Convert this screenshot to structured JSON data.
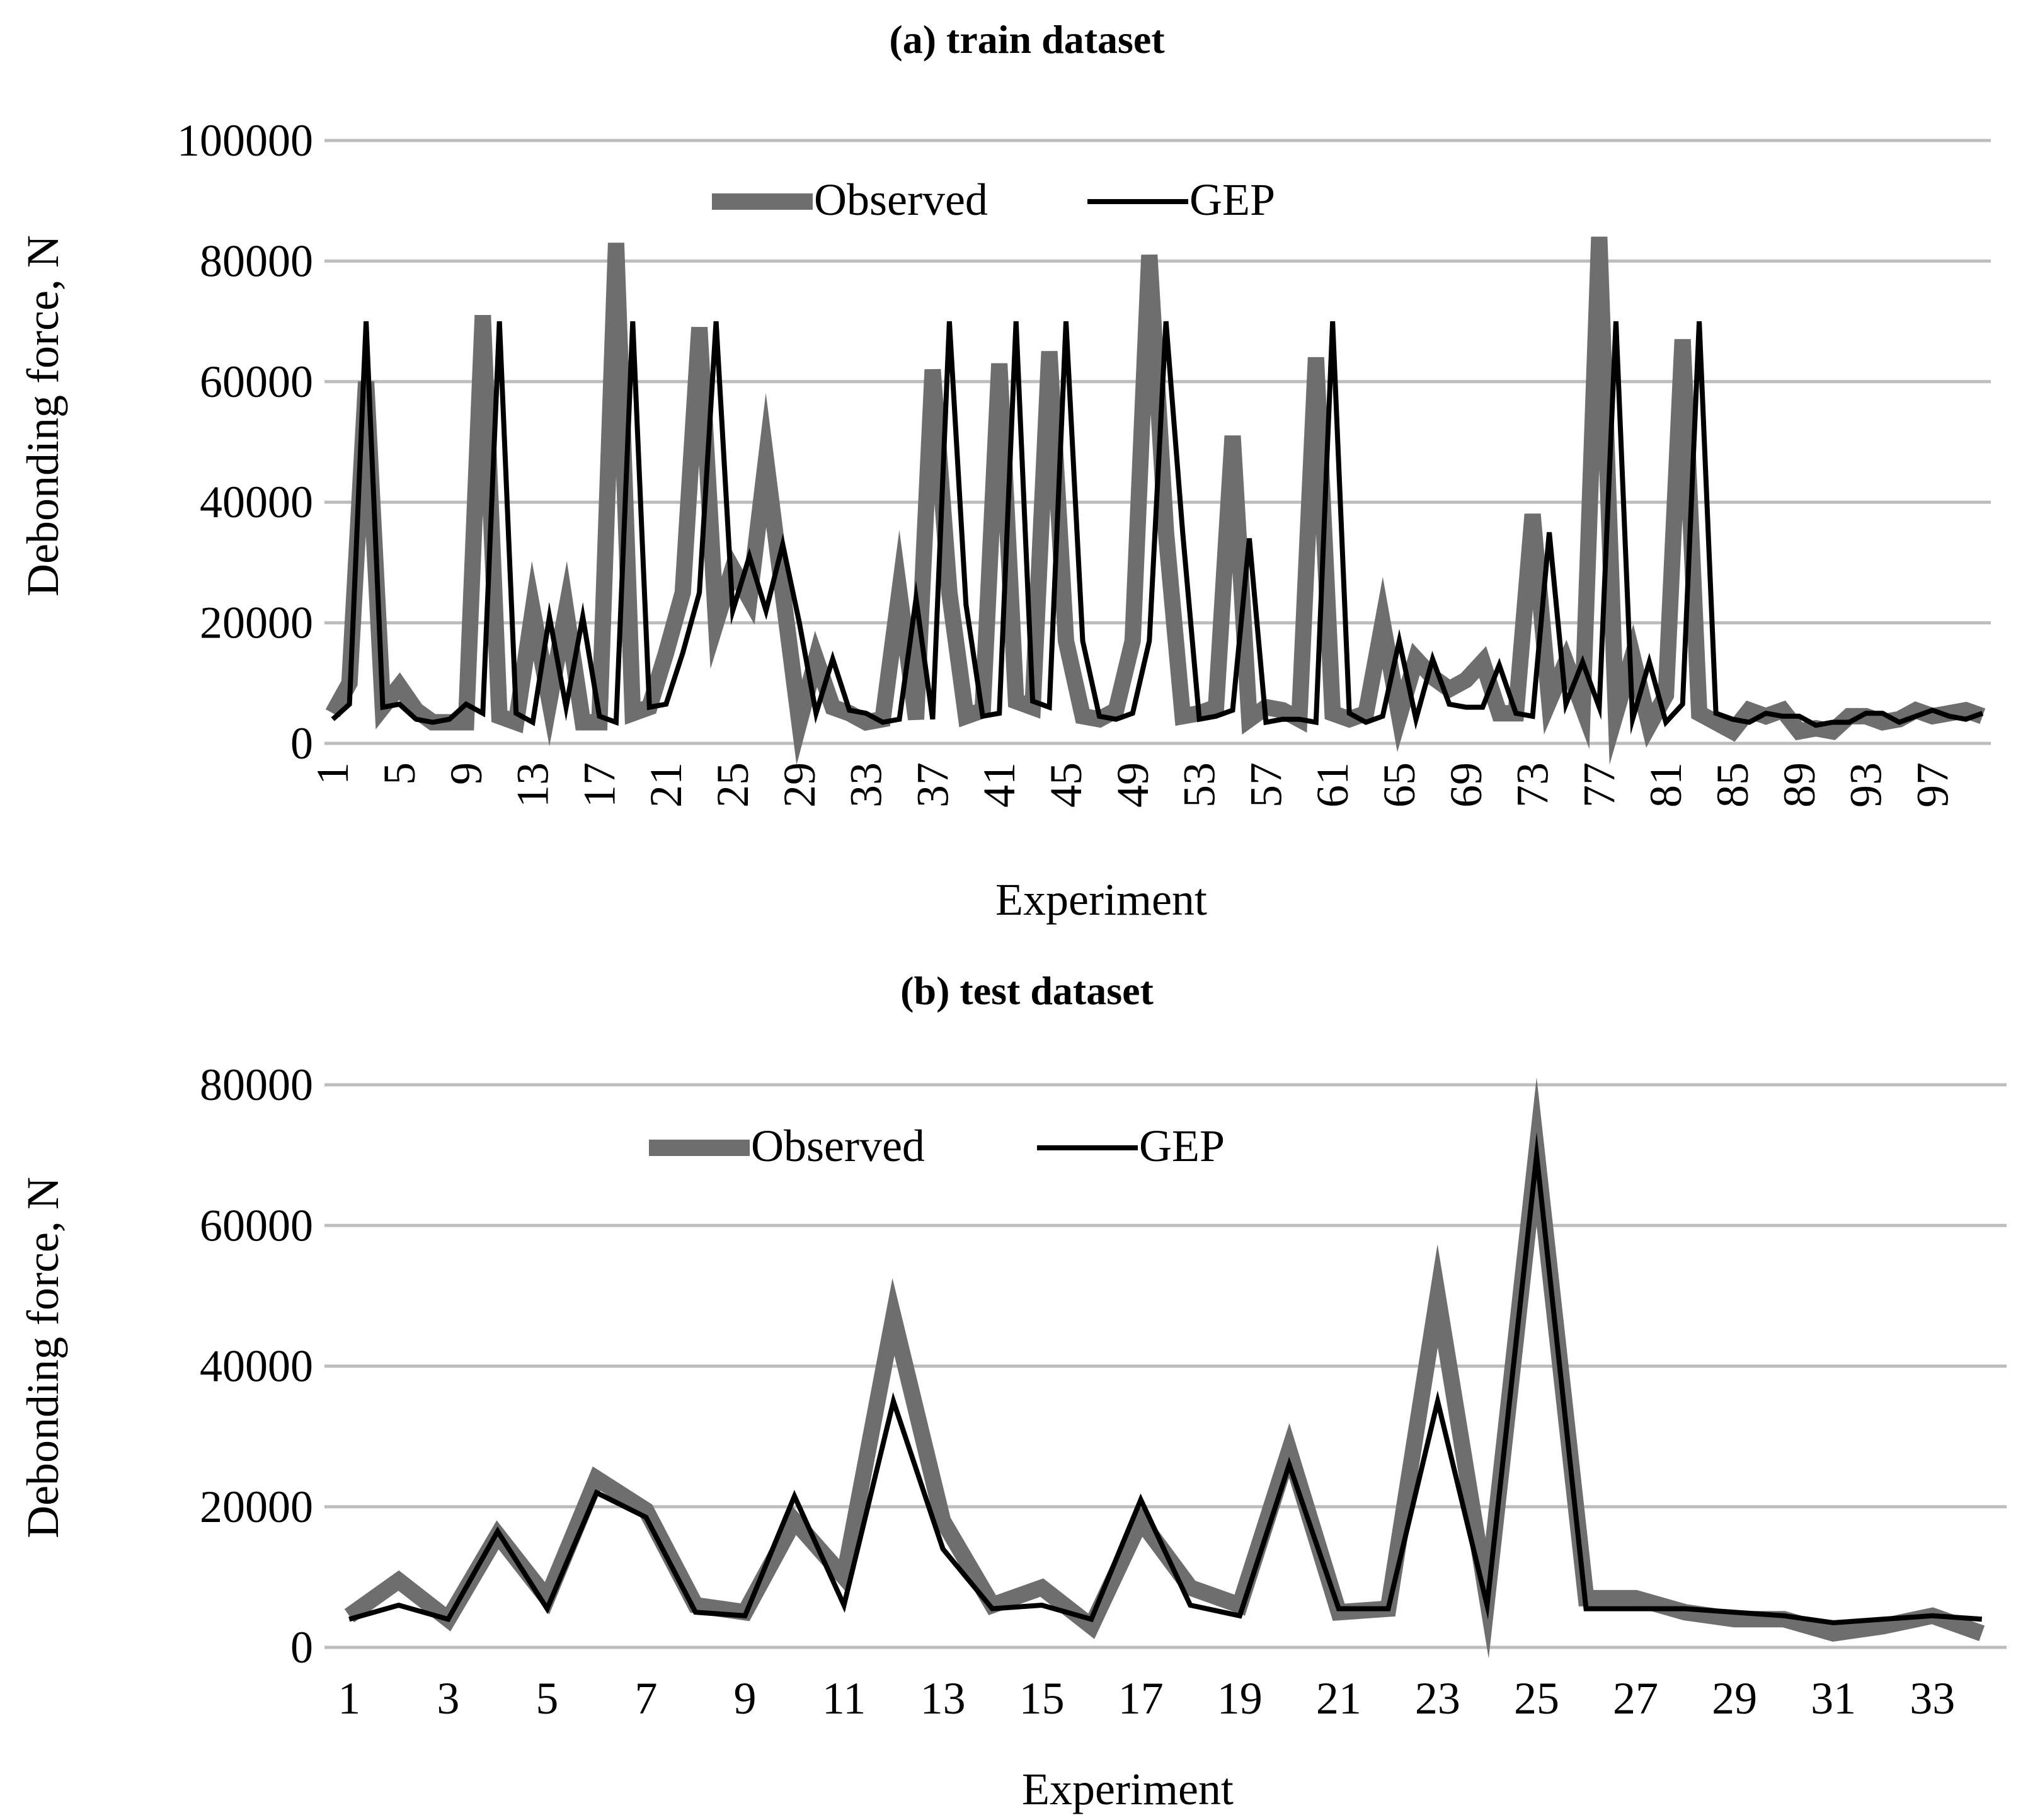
{
  "chart_data": [
    {
      "type": "line",
      "title": "(a) train dataset",
      "xlabel": "Experiment",
      "ylabel": "Debonding force, N",
      "ylim": [
        0,
        100000
      ],
      "yticks": [
        0,
        20000,
        40000,
        60000,
        80000,
        100000
      ],
      "x": [
        1,
        2,
        3,
        4,
        5,
        6,
        7,
        8,
        9,
        10,
        11,
        12,
        13,
        14,
        15,
        16,
        17,
        18,
        19,
        20,
        21,
        22,
        23,
        24,
        25,
        26,
        27,
        28,
        29,
        30,
        31,
        32,
        33,
        34,
        35,
        36,
        37,
        38,
        39,
        40,
        41,
        42,
        43,
        44,
        45,
        46,
        47,
        48,
        49,
        50,
        51,
        52,
        53,
        54,
        55,
        56,
        57,
        58,
        59,
        60,
        61,
        62,
        63,
        64,
        65,
        66,
        67,
        68,
        69,
        70,
        71,
        72,
        73,
        74,
        75,
        76,
        77,
        78,
        79,
        80,
        81,
        82,
        83,
        84,
        85,
        86,
        87,
        88,
        89,
        90,
        91,
        92,
        93,
        94,
        95,
        96,
        97,
        98,
        99,
        100
      ],
      "xtick_labels": [
        "1",
        "5",
        "9",
        "13",
        "17",
        "21",
        "25",
        "29",
        "33",
        "37",
        "41",
        "45",
        "49",
        "53",
        "57",
        "61",
        "65",
        "69",
        "73",
        "77",
        "81",
        "85",
        "89",
        "93",
        "97"
      ],
      "legend": [
        "Observed",
        "GEP"
      ],
      "legend_position": "top-center",
      "series": [
        {
          "name": "Observed",
          "color": "#6e6e6e",
          "values": [
            5000,
            10000,
            60000,
            6000,
            9500,
            5500,
            3500,
            3500,
            3500,
            71000,
            4500,
            3500,
            22000,
            7000,
            22000,
            3500,
            3500,
            83000,
            5000,
            6000,
            15000,
            25000,
            69000,
            20000,
            29000,
            24000,
            47000,
            25000,
            3500,
            14000,
            6000,
            5000,
            3500,
            4000,
            25000,
            4000,
            62000,
            25000,
            4500,
            5500,
            63000,
            7000,
            6000,
            65000,
            17000,
            4500,
            4000,
            5500,
            17000,
            81000,
            35000,
            4500,
            5000,
            6000,
            51000,
            4000,
            6000,
            5500,
            4000,
            64000,
            5000,
            4000,
            5000,
            20000,
            4500,
            14000,
            11000,
            9000,
            10500,
            13500,
            5000,
            5000,
            38000,
            7000,
            13500,
            6000,
            84000,
            5000,
            14500,
            3000,
            8000,
            67000,
            5000,
            3500,
            2000,
            5500,
            4500,
            5500,
            2000,
            2500,
            2000,
            4500,
            4500,
            3500,
            4000,
            5500,
            4500,
            5000,
            5500,
            4500
          ]
        },
        {
          "name": "GEP",
          "color": "#000000",
          "values": [
            4000,
            6500,
            70000,
            6000,
            6500,
            4000,
            3500,
            4000,
            6500,
            5000,
            70000,
            5000,
            3500,
            21000,
            6000,
            21000,
            4500,
            3500,
            70000,
            6000,
            6500,
            15000,
            25000,
            70000,
            22000,
            31000,
            22000,
            33000,
            20000,
            5000,
            14000,
            5500,
            5000,
            3500,
            4000,
            24000,
            4000,
            70000,
            23000,
            4500,
            5000,
            70000,
            7000,
            6000,
            70000,
            17000,
            4500,
            4000,
            5000,
            17000,
            70000,
            35000,
            4000,
            4500,
            5500,
            34000,
            3500,
            4000,
            4000,
            3500,
            70000,
            5000,
            3500,
            4500,
            17000,
            4000,
            14000,
            6500,
            6000,
            6000,
            13000,
            5000,
            4500,
            35000,
            6500,
            13500,
            6000,
            70000,
            4000,
            13500,
            3500,
            6500,
            70000,
            5000,
            4000,
            3500,
            5000,
            4500,
            4500,
            3000,
            3500,
            3500,
            5000,
            5000,
            3500,
            4500,
            5500,
            4500,
            4000,
            5000
          ]
        }
      ]
    },
    {
      "type": "line",
      "title": "(b) test dataset",
      "xlabel": "Experiment",
      "ylabel": "Debonding force, N",
      "ylim": [
        0,
        80000
      ],
      "yticks": [
        0,
        20000,
        40000,
        60000,
        80000
      ],
      "x": [
        1,
        2,
        3,
        4,
        5,
        6,
        7,
        8,
        9,
        10,
        11,
        12,
        13,
        14,
        15,
        16,
        17,
        18,
        19,
        20,
        21,
        22,
        23,
        24,
        25,
        26,
        27,
        28,
        29,
        30,
        31,
        32,
        33,
        34
      ],
      "xtick_labels": [
        "1",
        "3",
        "5",
        "7",
        "9",
        "11",
        "13",
        "15",
        "17",
        "19",
        "21",
        "23",
        "25",
        "27",
        "29",
        "31",
        "33"
      ],
      "legend": [
        "Observed",
        "GEP"
      ],
      "legend_position": "top-center",
      "series": [
        {
          "name": "Observed",
          "color": "#6e6e6e",
          "values": [
            4500,
            9500,
            4000,
            16000,
            7000,
            24000,
            19500,
            6000,
            5000,
            18000,
            10000,
            47000,
            18000,
            6000,
            8500,
            3000,
            18000,
            8500,
            6000,
            28000,
            5000,
            5500,
            50000,
            7000,
            70500,
            7000,
            7000,
            5000,
            4000,
            4000,
            2000,
            3000,
            4500,
            2000
          ]
        },
        {
          "name": "GEP",
          "color": "#000000",
          "values": [
            4000,
            6000,
            4000,
            16500,
            5500,
            22000,
            18500,
            5000,
            4500,
            21500,
            6000,
            35000,
            14000,
            5500,
            6000,
            4000,
            21000,
            6000,
            4500,
            26000,
            5500,
            5500,
            35000,
            6000,
            70000,
            5500,
            5500,
            5500,
            5000,
            4500,
            3500,
            4000,
            4500,
            4000
          ]
        }
      ]
    }
  ]
}
